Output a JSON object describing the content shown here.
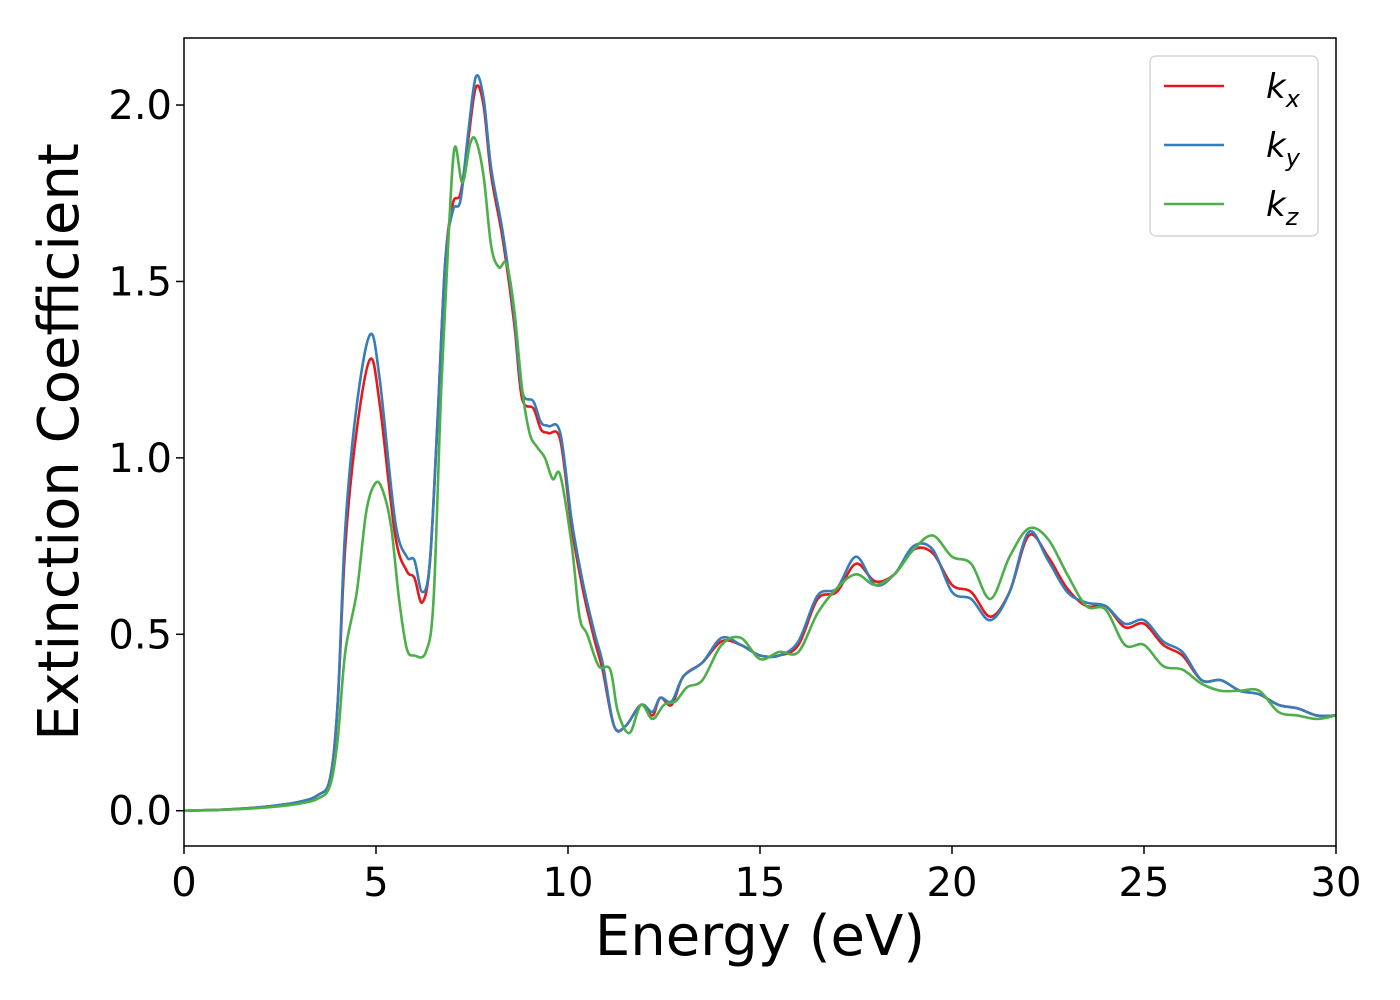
{
  "chart_data": {
    "type": "line",
    "title": "",
    "xlabel": "Energy (eV)",
    "ylabel": "Extinction Coefficient",
    "xlim": [
      0,
      30
    ],
    "ylim": [
      -0.1,
      2.19
    ],
    "x_ticks": [
      0,
      5,
      10,
      15,
      20,
      25,
      30
    ],
    "y_ticks": [
      0.0,
      0.5,
      1.0,
      1.5,
      2.0
    ],
    "x_tick_labels": [
      "0",
      "5",
      "10",
      "15",
      "20",
      "25",
      "30"
    ],
    "y_tick_labels": [
      "0.0",
      "0.5",
      "1.0",
      "1.5",
      "2.0"
    ],
    "grid": false,
    "legend_position": "top-right",
    "series": [
      {
        "name": "k_x",
        "legend_base": "k",
        "legend_sub": "x",
        "color": "#e41a1c",
        "points": [
          [
            0,
            0
          ],
          [
            1,
            0.003
          ],
          [
            2,
            0.01
          ],
          [
            3,
            0.025
          ],
          [
            3.5,
            0.045
          ],
          [
            3.8,
            0.09
          ],
          [
            4.0,
            0.3
          ],
          [
            4.2,
            0.75
          ],
          [
            4.5,
            1.08
          ],
          [
            4.85,
            1.28
          ],
          [
            5.1,
            1.15
          ],
          [
            5.5,
            0.78
          ],
          [
            5.8,
            0.68
          ],
          [
            6.0,
            0.66
          ],
          [
            6.2,
            0.59
          ],
          [
            6.4,
            0.7
          ],
          [
            6.6,
            1.1
          ],
          [
            6.8,
            1.55
          ],
          [
            7.0,
            1.72
          ],
          [
            7.2,
            1.75
          ],
          [
            7.4,
            1.9
          ],
          [
            7.6,
            2.05
          ],
          [
            7.8,
            2.0
          ],
          [
            8.0,
            1.8
          ],
          [
            8.3,
            1.62
          ],
          [
            8.6,
            1.38
          ],
          [
            8.8,
            1.17
          ],
          [
            9.1,
            1.14
          ],
          [
            9.3,
            1.08
          ],
          [
            9.5,
            1.07
          ],
          [
            9.8,
            1.05
          ],
          [
            10.1,
            0.8
          ],
          [
            10.4,
            0.62
          ],
          [
            10.7,
            0.48
          ],
          [
            10.9,
            0.4
          ],
          [
            11.2,
            0.24
          ],
          [
            11.5,
            0.24
          ],
          [
            11.9,
            0.3
          ],
          [
            12.2,
            0.27
          ],
          [
            12.4,
            0.32
          ],
          [
            12.7,
            0.3
          ],
          [
            13.0,
            0.38
          ],
          [
            13.5,
            0.42
          ],
          [
            14.0,
            0.48
          ],
          [
            14.5,
            0.47
          ],
          [
            15.0,
            0.44
          ],
          [
            15.5,
            0.44
          ],
          [
            16.0,
            0.47
          ],
          [
            16.5,
            0.6
          ],
          [
            17.0,
            0.62
          ],
          [
            17.5,
            0.7
          ],
          [
            18.0,
            0.65
          ],
          [
            18.5,
            0.67
          ],
          [
            19.0,
            0.74
          ],
          [
            19.5,
            0.73
          ],
          [
            20.0,
            0.64
          ],
          [
            20.5,
            0.62
          ],
          [
            21.0,
            0.55
          ],
          [
            21.5,
            0.62
          ],
          [
            22.0,
            0.78
          ],
          [
            22.5,
            0.72
          ],
          [
            23.0,
            0.63
          ],
          [
            23.5,
            0.58
          ],
          [
            24.0,
            0.58
          ],
          [
            24.5,
            0.52
          ],
          [
            25.0,
            0.53
          ],
          [
            25.5,
            0.47
          ],
          [
            26.0,
            0.44
          ],
          [
            26.5,
            0.37
          ],
          [
            27.0,
            0.37
          ],
          [
            27.5,
            0.34
          ],
          [
            28.0,
            0.33
          ],
          [
            28.5,
            0.3
          ],
          [
            29.0,
            0.29
          ],
          [
            29.5,
            0.27
          ],
          [
            30.0,
            0.27
          ]
        ]
      },
      {
        "name": "k_y",
        "legend_base": "k",
        "legend_sub": "y",
        "color": "#377eb8",
        "points": [
          [
            0,
            0
          ],
          [
            1,
            0.003
          ],
          [
            2,
            0.01
          ],
          [
            3,
            0.025
          ],
          [
            3.5,
            0.045
          ],
          [
            3.8,
            0.09
          ],
          [
            4.0,
            0.3
          ],
          [
            4.2,
            0.8
          ],
          [
            4.5,
            1.15
          ],
          [
            4.85,
            1.35
          ],
          [
            5.1,
            1.22
          ],
          [
            5.5,
            0.82
          ],
          [
            5.8,
            0.72
          ],
          [
            6.0,
            0.71
          ],
          [
            6.2,
            0.62
          ],
          [
            6.4,
            0.7
          ],
          [
            6.6,
            1.1
          ],
          [
            6.8,
            1.55
          ],
          [
            7.0,
            1.7
          ],
          [
            7.2,
            1.73
          ],
          [
            7.4,
            1.92
          ],
          [
            7.6,
            2.08
          ],
          [
            7.8,
            2.02
          ],
          [
            8.0,
            1.82
          ],
          [
            8.3,
            1.64
          ],
          [
            8.6,
            1.4
          ],
          [
            8.8,
            1.19
          ],
          [
            9.1,
            1.16
          ],
          [
            9.3,
            1.1
          ],
          [
            9.5,
            1.09
          ],
          [
            9.8,
            1.07
          ],
          [
            10.1,
            0.82
          ],
          [
            10.4,
            0.64
          ],
          [
            10.7,
            0.5
          ],
          [
            10.9,
            0.42
          ],
          [
            11.2,
            0.24
          ],
          [
            11.5,
            0.24
          ],
          [
            11.9,
            0.3
          ],
          [
            12.2,
            0.28
          ],
          [
            12.4,
            0.32
          ],
          [
            12.7,
            0.31
          ],
          [
            13.0,
            0.38
          ],
          [
            13.5,
            0.42
          ],
          [
            14.0,
            0.49
          ],
          [
            14.5,
            0.47
          ],
          [
            15.0,
            0.44
          ],
          [
            15.5,
            0.44
          ],
          [
            16.0,
            0.48
          ],
          [
            16.5,
            0.61
          ],
          [
            17.0,
            0.63
          ],
          [
            17.5,
            0.72
          ],
          [
            18.0,
            0.64
          ],
          [
            18.5,
            0.67
          ],
          [
            19.0,
            0.75
          ],
          [
            19.5,
            0.74
          ],
          [
            20.0,
            0.62
          ],
          [
            20.5,
            0.6
          ],
          [
            21.0,
            0.54
          ],
          [
            21.5,
            0.62
          ],
          [
            22.0,
            0.79
          ],
          [
            22.5,
            0.71
          ],
          [
            23.0,
            0.62
          ],
          [
            23.5,
            0.59
          ],
          [
            24.0,
            0.58
          ],
          [
            24.5,
            0.53
          ],
          [
            25.0,
            0.54
          ],
          [
            25.5,
            0.48
          ],
          [
            26.0,
            0.45
          ],
          [
            26.5,
            0.37
          ],
          [
            27.0,
            0.37
          ],
          [
            27.5,
            0.34
          ],
          [
            28.0,
            0.33
          ],
          [
            28.5,
            0.3
          ],
          [
            29.0,
            0.29
          ],
          [
            29.5,
            0.27
          ],
          [
            30.0,
            0.27
          ]
        ]
      },
      {
        "name": "k_z",
        "legend_base": "k",
        "legend_sub": "z",
        "color": "#4daf4a",
        "points": [
          [
            0,
            0
          ],
          [
            1,
            0.003
          ],
          [
            2,
            0.008
          ],
          [
            3,
            0.02
          ],
          [
            3.5,
            0.035
          ],
          [
            3.8,
            0.07
          ],
          [
            4.0,
            0.2
          ],
          [
            4.2,
            0.45
          ],
          [
            4.5,
            0.62
          ],
          [
            4.75,
            0.85
          ],
          [
            5.0,
            0.93
          ],
          [
            5.2,
            0.9
          ],
          [
            5.4,
            0.8
          ],
          [
            5.6,
            0.6
          ],
          [
            5.8,
            0.46
          ],
          [
            6.0,
            0.44
          ],
          [
            6.3,
            0.45
          ],
          [
            6.5,
            0.6
          ],
          [
            6.7,
            1.2
          ],
          [
            6.9,
            1.65
          ],
          [
            7.05,
            1.88
          ],
          [
            7.25,
            1.78
          ],
          [
            7.45,
            1.89
          ],
          [
            7.6,
            1.9
          ],
          [
            7.8,
            1.8
          ],
          [
            8.0,
            1.6
          ],
          [
            8.2,
            1.54
          ],
          [
            8.4,
            1.55
          ],
          [
            8.6,
            1.42
          ],
          [
            8.8,
            1.2
          ],
          [
            9.0,
            1.07
          ],
          [
            9.2,
            1.03
          ],
          [
            9.4,
            1.0
          ],
          [
            9.6,
            0.94
          ],
          [
            9.8,
            0.95
          ],
          [
            10.1,
            0.75
          ],
          [
            10.3,
            0.55
          ],
          [
            10.5,
            0.5
          ],
          [
            10.8,
            0.41
          ],
          [
            11.1,
            0.4
          ],
          [
            11.3,
            0.28
          ],
          [
            11.6,
            0.22
          ],
          [
            11.9,
            0.3
          ],
          [
            12.2,
            0.26
          ],
          [
            12.5,
            0.3
          ],
          [
            12.8,
            0.31
          ],
          [
            13.1,
            0.35
          ],
          [
            13.5,
            0.37
          ],
          [
            14.0,
            0.47
          ],
          [
            14.5,
            0.49
          ],
          [
            15.0,
            0.43
          ],
          [
            15.5,
            0.45
          ],
          [
            16.0,
            0.45
          ],
          [
            16.5,
            0.56
          ],
          [
            17.0,
            0.63
          ],
          [
            17.5,
            0.67
          ],
          [
            18.0,
            0.64
          ],
          [
            18.5,
            0.67
          ],
          [
            19.0,
            0.74
          ],
          [
            19.5,
            0.78
          ],
          [
            20.0,
            0.72
          ],
          [
            20.5,
            0.7
          ],
          [
            21.0,
            0.6
          ],
          [
            21.5,
            0.72
          ],
          [
            22.0,
            0.8
          ],
          [
            22.5,
            0.77
          ],
          [
            23.0,
            0.67
          ],
          [
            23.5,
            0.58
          ],
          [
            24.0,
            0.57
          ],
          [
            24.5,
            0.47
          ],
          [
            25.0,
            0.47
          ],
          [
            25.5,
            0.41
          ],
          [
            26.0,
            0.4
          ],
          [
            26.5,
            0.36
          ],
          [
            27.0,
            0.34
          ],
          [
            27.5,
            0.34
          ],
          [
            28.0,
            0.34
          ],
          [
            28.5,
            0.28
          ],
          [
            29.0,
            0.27
          ],
          [
            29.5,
            0.26
          ],
          [
            30.0,
            0.27
          ]
        ]
      }
    ]
  }
}
